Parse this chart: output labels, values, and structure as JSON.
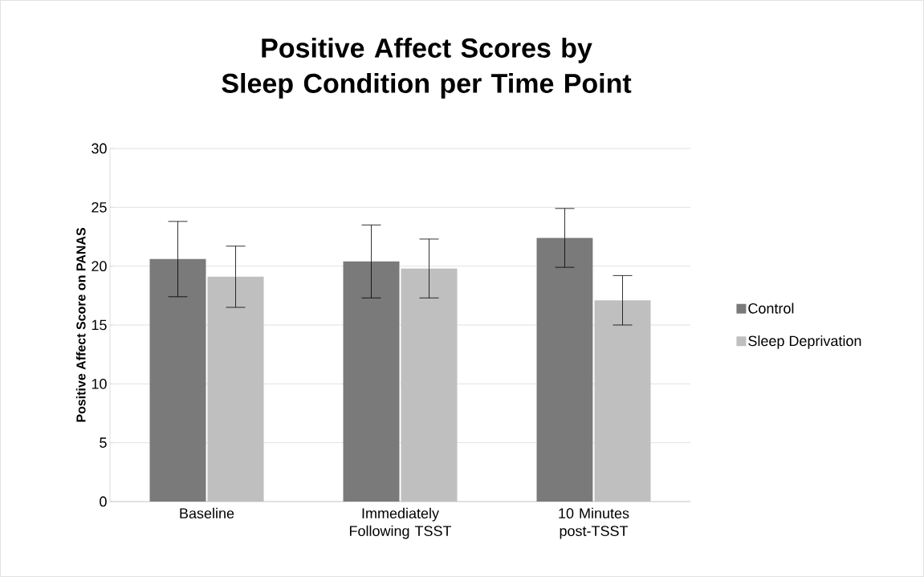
{
  "chart_data": {
    "type": "bar",
    "title": "Positive Affect Scores by Sleep Condition per Time Point",
    "ylabel": "Positive Affect Score on PANAS",
    "categories": [
      "Baseline",
      "Immediately Following TSST",
      "10 Minutes post-TSST"
    ],
    "series": [
      {
        "name": "Control",
        "color": "#7a7a7a",
        "values": [
          20.6,
          20.4,
          22.4
        ],
        "errors": [
          3.2,
          3.1,
          2.5
        ]
      },
      {
        "name": "Sleep Deprivation",
        "color": "#bfbfbf",
        "values": [
          19.1,
          19.8,
          17.1
        ],
        "errors": [
          2.6,
          2.5,
          2.1
        ]
      }
    ],
    "ylim": [
      0,
      30
    ],
    "yticks": [
      0,
      5,
      10,
      15,
      20,
      25,
      30
    ],
    "grid": "y",
    "legend": "right"
  }
}
